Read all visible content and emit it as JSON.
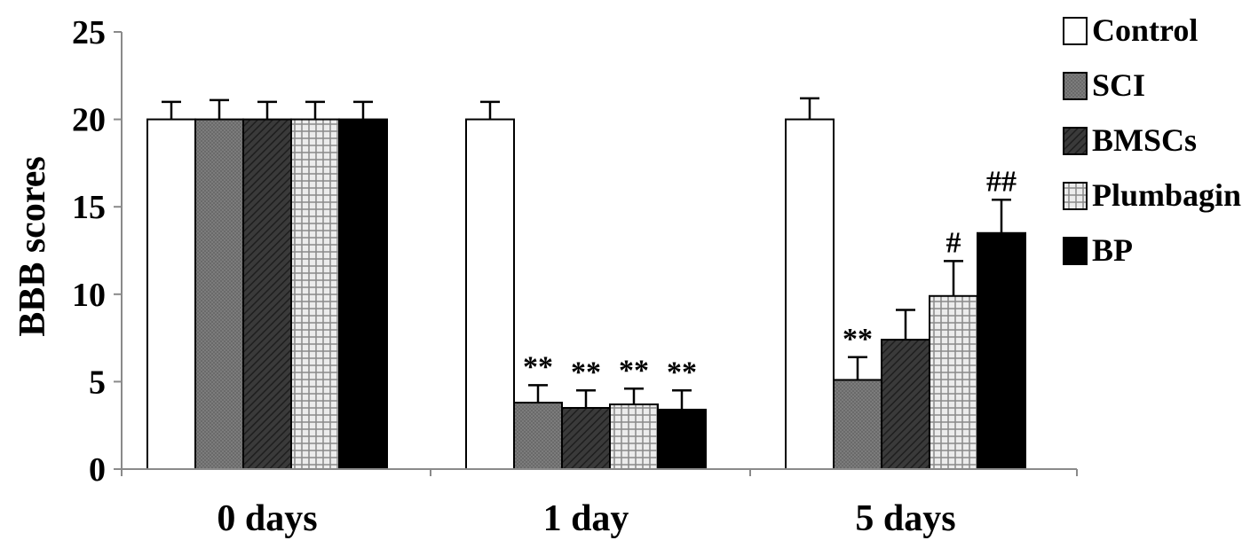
{
  "chart_data": {
    "type": "bar",
    "title": "",
    "xlabel": "",
    "ylabel": "BBB scores",
    "ylim": [
      0,
      25
    ],
    "yticks": [
      0,
      5,
      10,
      15,
      20,
      25
    ],
    "categories": [
      "0 days",
      "1 day",
      "5 days"
    ],
    "legend_position": "right",
    "grid": false,
    "series": [
      {
        "name": "Control",
        "fill": "white",
        "values": [
          20,
          20,
          20
        ],
        "errors": [
          1.0,
          1.0,
          1.2
        ]
      },
      {
        "name": "SCI",
        "fill": "gray",
        "values": [
          20,
          3.8,
          5.1
        ],
        "errors": [
          1.1,
          1.0,
          1.3
        ]
      },
      {
        "name": "BMSCs",
        "fill": "dark",
        "values": [
          20,
          3.5,
          7.4
        ],
        "errors": [
          1.0,
          1.0,
          1.7
        ]
      },
      {
        "name": "Plumbagin",
        "fill": "checker",
        "values": [
          20,
          3.7,
          9.9
        ],
        "errors": [
          1.0,
          0.9,
          2.0
        ]
      },
      {
        "name": "BP",
        "fill": "black",
        "values": [
          20,
          3.4,
          13.5
        ],
        "errors": [
          1.0,
          1.1,
          1.9
        ]
      }
    ],
    "annotations": [
      {
        "category": 1,
        "series": 1,
        "text": "**"
      },
      {
        "category": 1,
        "series": 2,
        "text": "**"
      },
      {
        "category": 1,
        "series": 3,
        "text": "**"
      },
      {
        "category": 1,
        "series": 4,
        "text": "**"
      },
      {
        "category": 2,
        "series": 1,
        "text": "**"
      },
      {
        "category": 2,
        "series": 3,
        "text": "#"
      },
      {
        "category": 2,
        "series": 4,
        "text": "##"
      }
    ]
  }
}
